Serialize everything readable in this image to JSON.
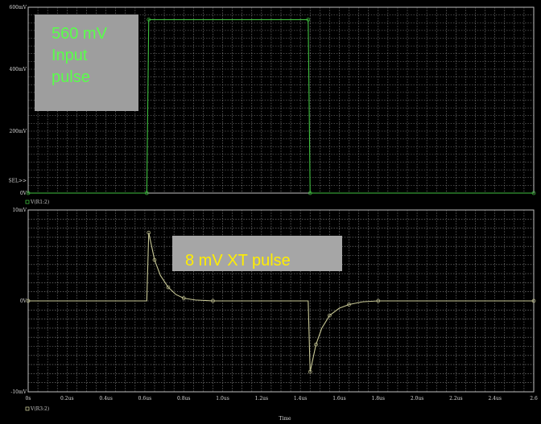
{
  "chart_data": [
    {
      "type": "line",
      "panel": "top",
      "xlabel": "",
      "ylabel": "",
      "ylim": [
        0,
        600
      ],
      "yticks": [
        "0V",
        "SEL>>",
        "200mV",
        "400mV",
        "600mV"
      ],
      "trace_label": "V(R1:2)",
      "series": [
        {
          "name": "V(R1:2)",
          "color": "#3fbf3f",
          "x": [
            0,
            0.61,
            0.62,
            1.44,
            1.45,
            2.8
          ],
          "y": [
            0,
            0,
            560,
            560,
            0,
            0
          ]
        }
      ],
      "annotation": [
        "560 mV",
        "Input",
        "pulse"
      ]
    },
    {
      "type": "line",
      "panel": "bottom",
      "xlabel": "Time",
      "ylim": [
        -10,
        10
      ],
      "xlim": [
        0,
        2.6
      ],
      "yticks": [
        "-10mV",
        "0V",
        "10mV"
      ],
      "xticks": [
        "0s",
        "0.2us",
        "0.4us",
        "0.6us",
        "0.8us",
        "1.0us",
        "1.2us",
        "1.4us",
        "1.6us",
        "1.8us",
        "2.0us",
        "2.2us",
        "2.4us",
        "2.6"
      ],
      "trace_label": "V(R3:2)",
      "series": [
        {
          "name": "V(R3:2)",
          "color": "#c8c896",
          "x": [
            0,
            0.61,
            0.62,
            0.63,
            0.65,
            0.68,
            0.72,
            0.76,
            0.8,
            0.86,
            0.95,
            1.44,
            1.45,
            1.46,
            1.48,
            1.51,
            1.55,
            1.6,
            1.65,
            1.72,
            1.8,
            2.8
          ],
          "y": [
            0,
            0,
            7.5,
            6.5,
            4.5,
            2.8,
            1.5,
            0.7,
            0.3,
            0.1,
            0,
            0,
            -7.8,
            -6.8,
            -4.8,
            -3.0,
            -1.6,
            -0.8,
            -0.4,
            -0.1,
            0,
            0
          ]
        }
      ],
      "annotation": "8 mV XT pulse"
    }
  ]
}
